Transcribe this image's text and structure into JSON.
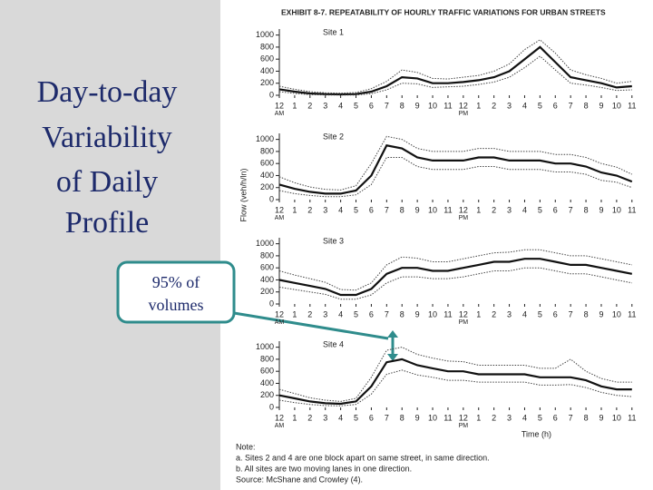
{
  "slide": {
    "title_lines": [
      "Day-to-day",
      "Variability",
      "of  Daily",
      "Profile"
    ],
    "callout_lines": [
      "95% of",
      "volumes"
    ]
  },
  "exhibit_title": "EXHIBIT 8-7.  REPEATABILITY OF HOURLY TRAFFIC VARIATIONS FOR URBAN STREETS",
  "y_axis_label": "Flow (veh/h/ln)",
  "notes": [
    "Note:",
    "a. Sites 2 and 4 are one block apart on same street, in same direction.",
    "b. All sites are two moving lanes in one direction.",
    "Source: McShane and Crowley (4)."
  ],
  "chart_data": [
    {
      "type": "line",
      "title": "Site 1",
      "am_label": "AM",
      "pm_label": "PM",
      "x": [
        0,
        1,
        2,
        3,
        4,
        5,
        6,
        7,
        8,
        9,
        10,
        11,
        12,
        13,
        14,
        15,
        16,
        17,
        18,
        19,
        20,
        21,
        22,
        23
      ],
      "series": [
        {
          "color": "#111111",
          "dashed": false,
          "values": [
            100,
            60,
            30,
            20,
            15,
            20,
            60,
            150,
            300,
            280,
            200,
            200,
            220,
            250,
            300,
            400,
            600,
            800,
            550,
            300,
            250,
            200,
            130,
            150
          ]
        },
        {
          "color": "#444444",
          "dashed": true,
          "values": [
            150,
            100,
            60,
            40,
            35,
            45,
            110,
            230,
            420,
            380,
            280,
            270,
            300,
            330,
            400,
            520,
            760,
            920,
            700,
            420,
            340,
            280,
            200,
            230
          ]
        },
        {
          "color": "#444444",
          "dashed": true,
          "values": [
            60,
            30,
            10,
            5,
            5,
            5,
            25,
            90,
            200,
            190,
            130,
            140,
            150,
            180,
            220,
            300,
            460,
            650,
            420,
            200,
            170,
            130,
            80,
            90
          ]
        }
      ],
      "xlim": [
        0,
        23.9
      ],
      "ylim": [
        0,
        1100
      ],
      "xticks": [
        {
          "value": 0,
          "label": "12"
        },
        1,
        2,
        3,
        4,
        5,
        6,
        7,
        8,
        9,
        10,
        11,
        {
          "value": 12,
          "label": "12"
        },
        {
          "value": 13,
          "label": "1"
        },
        {
          "value": 14,
          "label": "2"
        },
        {
          "value": 15,
          "label": "3"
        },
        {
          "value": 16,
          "label": "4"
        },
        {
          "value": 17,
          "label": "5"
        },
        {
          "value": 18,
          "label": "6"
        },
        {
          "value": 19,
          "label": "7"
        },
        {
          "value": 20,
          "label": "8"
        },
        {
          "value": 21,
          "label": "9"
        },
        {
          "value": 22,
          "label": "10"
        },
        {
          "value": 23,
          "label": "11"
        }
      ],
      "yticks": [
        0,
        200,
        400,
        600,
        800,
        1000
      ]
    },
    {
      "type": "line",
      "title": "Site 2",
      "am_label": "AM",
      "pm_label": "PM",
      "x": [
        0,
        1,
        2,
        3,
        4,
        5,
        6,
        7,
        8,
        9,
        10,
        11,
        12,
        13,
        14,
        15,
        16,
        17,
        18,
        19,
        20,
        21,
        22,
        23
      ],
      "series": [
        {
          "color": "#111111",
          "dashed": false,
          "values": [
            250,
            180,
            130,
            100,
            100,
            150,
            400,
            900,
            850,
            700,
            650,
            650,
            650,
            700,
            700,
            650,
            650,
            650,
            600,
            600,
            550,
            450,
            400,
            300
          ]
        },
        {
          "color": "#444444",
          "dashed": true,
          "values": [
            380,
            280,
            210,
            170,
            160,
            230,
            600,
            1050,
            1000,
            850,
            800,
            800,
            800,
            850,
            850,
            800,
            800,
            800,
            750,
            750,
            700,
            600,
            540,
            420
          ]
        },
        {
          "color": "#444444",
          "dashed": true,
          "values": [
            150,
            100,
            70,
            50,
            50,
            80,
            250,
            700,
            700,
            550,
            500,
            500,
            500,
            550,
            550,
            500,
            500,
            500,
            460,
            460,
            420,
            320,
            290,
            200
          ]
        }
      ],
      "xlim": [
        0,
        23.9
      ],
      "ylim": [
        0,
        1100
      ],
      "xticks": [
        {
          "value": 0,
          "label": "12"
        },
        1,
        2,
        3,
        4,
        5,
        6,
        7,
        8,
        9,
        10,
        11,
        {
          "value": 12,
          "label": "12"
        },
        {
          "value": 13,
          "label": "1"
        },
        {
          "value": 14,
          "label": "2"
        },
        {
          "value": 15,
          "label": "3"
        },
        {
          "value": 16,
          "label": "4"
        },
        {
          "value": 17,
          "label": "5"
        },
        {
          "value": 18,
          "label": "6"
        },
        {
          "value": 19,
          "label": "7"
        },
        {
          "value": 20,
          "label": "8"
        },
        {
          "value": 21,
          "label": "9"
        },
        {
          "value": 22,
          "label": "10"
        },
        {
          "value": 23,
          "label": "11"
        }
      ],
      "yticks": [
        0,
        200,
        400,
        600,
        800,
        1000
      ]
    },
    {
      "type": "line",
      "title": "Site 3",
      "am_label": "AM",
      "pm_label": "PM",
      "x": [
        0,
        1,
        2,
        3,
        4,
        5,
        6,
        7,
        8,
        9,
        10,
        11,
        12,
        13,
        14,
        15,
        16,
        17,
        18,
        19,
        20,
        21,
        22,
        23
      ],
      "series": [
        {
          "color": "#111111",
          "dashed": false,
          "values": [
            400,
            350,
            300,
            250,
            150,
            150,
            250,
            500,
            600,
            600,
            550,
            550,
            600,
            650,
            700,
            700,
            750,
            750,
            700,
            650,
            650,
            600,
            550,
            500
          ]
        },
        {
          "color": "#444444",
          "dashed": true,
          "values": [
            550,
            480,
            420,
            360,
            240,
            230,
            350,
            650,
            780,
            760,
            700,
            700,
            750,
            800,
            850,
            860,
            900,
            900,
            850,
            800,
            800,
            750,
            700,
            650
          ]
        },
        {
          "color": "#444444",
          "dashed": true,
          "values": [
            280,
            240,
            200,
            160,
            80,
            80,
            150,
            350,
            450,
            450,
            420,
            420,
            450,
            500,
            550,
            550,
            600,
            600,
            550,
            500,
            500,
            450,
            400,
            350
          ]
        }
      ],
      "xlim": [
        0,
        23.9
      ],
      "ylim": [
        0,
        1100
      ],
      "xticks": [
        {
          "value": 0,
          "label": "12"
        },
        1,
        2,
        3,
        4,
        5,
        6,
        7,
        8,
        9,
        10,
        11,
        {
          "value": 12,
          "label": "12"
        },
        {
          "value": 13,
          "label": "1"
        },
        {
          "value": 14,
          "label": "2"
        },
        {
          "value": 15,
          "label": "3"
        },
        {
          "value": 16,
          "label": "4"
        },
        {
          "value": 17,
          "label": "5"
        },
        {
          "value": 18,
          "label": "6"
        },
        {
          "value": 19,
          "label": "7"
        },
        {
          "value": 20,
          "label": "8"
        },
        {
          "value": 21,
          "label": "9"
        },
        {
          "value": 22,
          "label": "10"
        },
        {
          "value": 23,
          "label": "11"
        }
      ],
      "yticks": [
        0,
        200,
        400,
        600,
        800,
        1000
      ]
    },
    {
      "type": "line",
      "title": "Site 4",
      "am_label": "AM",
      "pm_label": "PM",
      "x_label": "Time (h)",
      "x": [
        0,
        1,
        2,
        3,
        4,
        5,
        6,
        7,
        8,
        9,
        10,
        11,
        12,
        13,
        14,
        15,
        16,
        17,
        18,
        19,
        20,
        21,
        22,
        23
      ],
      "series": [
        {
          "color": "#111111",
          "dashed": false,
          "values": [
            200,
            150,
            100,
            70,
            60,
            100,
            350,
            750,
            800,
            700,
            650,
            600,
            600,
            550,
            550,
            550,
            550,
            500,
            500,
            500,
            450,
            350,
            300,
            300
          ]
        },
        {
          "color": "#444444",
          "dashed": true,
          "values": [
            300,
            230,
            160,
            120,
            100,
            150,
            500,
            950,
            1000,
            880,
            820,
            770,
            760,
            700,
            700,
            700,
            700,
            650,
            650,
            800,
            600,
            480,
            420,
            420
          ]
        },
        {
          "color": "#444444",
          "dashed": true,
          "values": [
            120,
            80,
            50,
            30,
            25,
            50,
            220,
            550,
            620,
            540,
            500,
            450,
            450,
            420,
            420,
            420,
            420,
            370,
            370,
            380,
            330,
            250,
            200,
            180
          ]
        }
      ],
      "xlim": [
        0,
        23.9
      ],
      "ylim": [
        0,
        1100
      ],
      "xticks": [
        {
          "value": 0,
          "label": "12"
        },
        1,
        2,
        3,
        4,
        5,
        6,
        7,
        8,
        9,
        10,
        11,
        {
          "value": 12,
          "label": "12"
        },
        {
          "value": 13,
          "label": "1"
        },
        {
          "value": 14,
          "label": "2"
        },
        {
          "value": 15,
          "label": "3"
        },
        {
          "value": 16,
          "label": "4"
        },
        {
          "value": 17,
          "label": "5"
        },
        {
          "value": 18,
          "label": "6"
        },
        {
          "value": 19,
          "label": "7"
        },
        {
          "value": 20,
          "label": "8"
        },
        {
          "value": 21,
          "label": "9"
        },
        {
          "value": 22,
          "label": "10"
        },
        {
          "value": 23,
          "label": "11"
        }
      ],
      "yticks": [
        0,
        200,
        400,
        600,
        800,
        1000
      ]
    }
  ]
}
